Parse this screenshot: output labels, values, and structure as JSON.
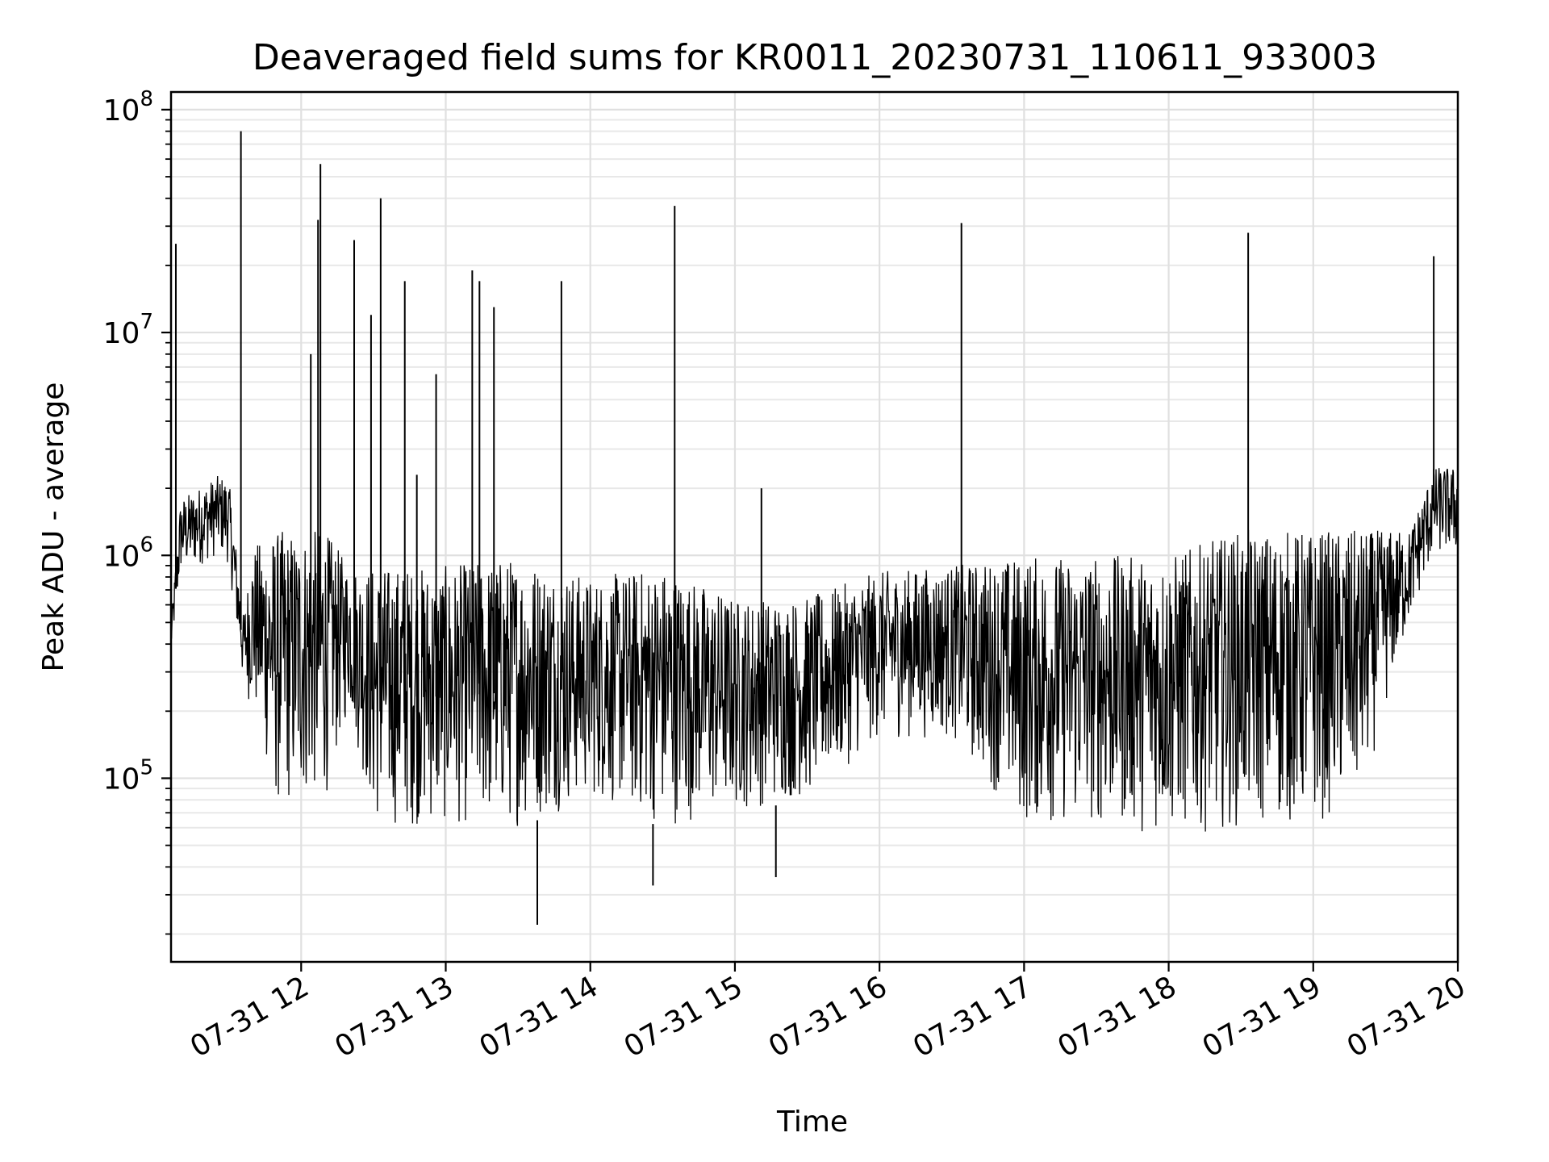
{
  "chart_data": {
    "type": "line",
    "title": "Deaveraged field sums for KR0011_20230731_110611_933003",
    "xlabel": "Time",
    "ylabel": "Peak ADU - average",
    "y_scale": "log",
    "xlim": [
      "07-31 11:06",
      "07-31 20:00"
    ],
    "ylim": [
      15000,
      120000000
    ],
    "grid": true,
    "x_ticks": [
      "07-31 12",
      "07-31 13",
      "07-31 14",
      "07-31 15",
      "07-31 16",
      "07-31 17",
      "07-31 18",
      "07-31 19",
      "07-31 20"
    ],
    "y_ticks": [
      {
        "value": 100000,
        "base": "10",
        "exp": "5"
      },
      {
        "value": 1000000,
        "base": "10",
        "exp": "6"
      },
      {
        "value": 10000000,
        "base": "10",
        "exp": "7"
      },
      {
        "value": 100000000,
        "base": "10",
        "exp": "8"
      }
    ],
    "line_color": "#000000",
    "series": [
      {
        "baseline": [
          {
            "x": "07-31 11:06",
            "low": 350000,
            "high": 500000
          },
          {
            "x": "07-31 11:10",
            "low": 800000,
            "high": 1800000
          },
          {
            "x": "07-31 11:30",
            "low": 900000,
            "high": 2200000
          },
          {
            "x": "07-31 11:26",
            "low": 1000000,
            "high": 2300000
          },
          {
            "x": "07-31 11:36",
            "low": 250000,
            "high": 550000
          },
          {
            "x": "07-31 11:40",
            "low": 200000,
            "high": 1100000
          },
          {
            "x": "07-31 11:50",
            "low": 70000,
            "high": 1300000
          },
          {
            "x": "07-31 12:10",
            "low": 80000,
            "high": 1300000
          },
          {
            "x": "07-31 12:20",
            "low": 200000,
            "high": 900000
          },
          {
            "x": "07-31 12:30",
            "low": 60000,
            "high": 900000
          },
          {
            "x": "07-31 13:00",
            "low": 60000,
            "high": 900000
          },
          {
            "x": "07-31 13:30",
            "low": 60000,
            "high": 1000000
          },
          {
            "x": "07-31 14:00",
            "low": 80000,
            "high": 800000
          },
          {
            "x": "07-31 14:30",
            "low": 60000,
            "high": 900000
          },
          {
            "x": "07-31 15:00",
            "low": 70000,
            "high": 650000
          },
          {
            "x": "07-31 15:30",
            "low": 80000,
            "high": 650000
          },
          {
            "x": "07-31 16:00",
            "low": 150000,
            "high": 850000
          },
          {
            "x": "07-31 16:30",
            "low": 150000,
            "high": 900000
          },
          {
            "x": "07-31 17:00",
            "low": 60000,
            "high": 1000000
          },
          {
            "x": "07-31 17:30",
            "low": 60000,
            "high": 1000000
          },
          {
            "x": "07-31 18:00",
            "low": 55000,
            "high": 1000000
          },
          {
            "x": "07-31 18:30",
            "low": 60000,
            "high": 1300000
          },
          {
            "x": "07-31 19:00",
            "low": 60000,
            "high": 1300000
          },
          {
            "x": "07-31 19:20",
            "low": 80000,
            "high": 1300000
          },
          {
            "x": "07-31 19:40",
            "low": 500000,
            "high": 1300000
          },
          {
            "x": "07-31 19:50",
            "low": 1000000,
            "high": 2500000
          },
          {
            "x": "07-31 20:00",
            "low": 1000000,
            "high": 2500000
          }
        ],
        "spikes": [
          {
            "x": "07-31 11:08",
            "y": 25000000
          },
          {
            "x": "07-31 11:35",
            "y": 80000000
          },
          {
            "x": "07-31 12:04",
            "y": 8000000
          },
          {
            "x": "07-31 12:07",
            "y": 32000000
          },
          {
            "x": "07-31 12:08",
            "y": 57000000
          },
          {
            "x": "07-31 12:22",
            "y": 26000000
          },
          {
            "x": "07-31 12:29",
            "y": 12000000
          },
          {
            "x": "07-31 12:33",
            "y": 40000000
          },
          {
            "x": "07-31 12:43",
            "y": 17000000
          },
          {
            "x": "07-31 12:48",
            "y": 2300000
          },
          {
            "x": "07-31 12:56",
            "y": 6500000
          },
          {
            "x": "07-31 13:11",
            "y": 19000000
          },
          {
            "x": "07-31 13:14",
            "y": 17000000
          },
          {
            "x": "07-31 13:20",
            "y": 13000000
          },
          {
            "x": "07-31 13:48",
            "y": 17000000
          },
          {
            "x": "07-31 14:35",
            "y": 37000000
          },
          {
            "x": "07-31 15:11",
            "y": 2000000
          },
          {
            "x": "07-31 16:34",
            "y": 31000000
          },
          {
            "x": "07-31 18:33",
            "y": 28000000
          },
          {
            "x": "07-31 19:50",
            "y": 22000000
          }
        ],
        "dips": [
          {
            "x": "07-31 13:38",
            "y": 22000
          },
          {
            "x": "07-31 14:26",
            "y": 33000
          },
          {
            "x": "07-31 15:17",
            "y": 36000
          }
        ]
      }
    ]
  }
}
